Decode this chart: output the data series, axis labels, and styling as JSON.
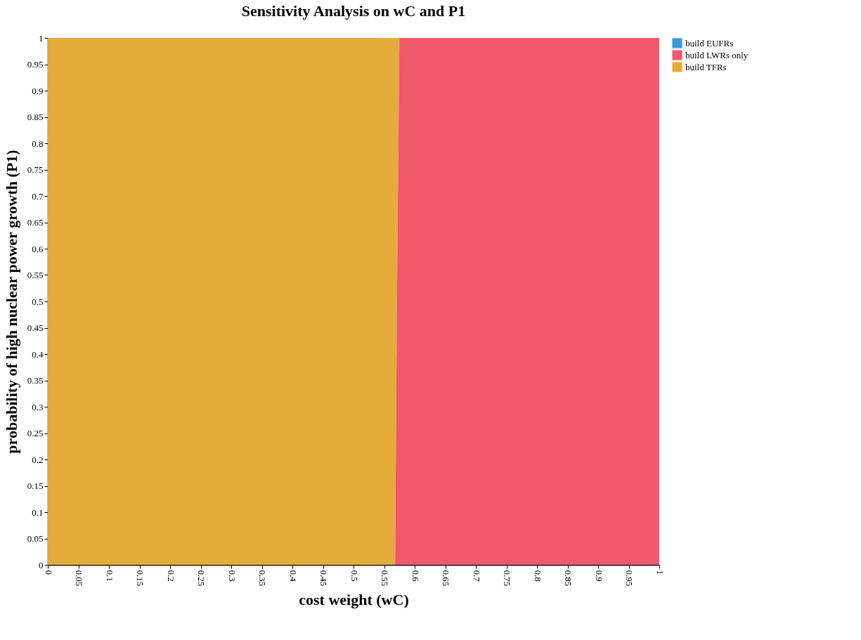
{
  "chart_data": {
    "type": "area",
    "title": "Sensitivity Analysis on wC and P1",
    "xlabel": "cost weight (wC)",
    "ylabel": "probability of high nuclear power growth (P1)",
    "orientation": "horizontal",
    "stacked": true,
    "x": [
      0,
      0.5,
      1
    ],
    "series": [
      {
        "name": "build TFRs",
        "color": "#e5ac3b",
        "values": [
          0.568,
          0.571,
          0.575
        ]
      },
      {
        "name": "build LWRs only",
        "color": "#f0586b",
        "values": [
          0.432,
          0.429,
          0.425
        ]
      },
      {
        "name": "build EUFRs",
        "color": "#3d9ad6",
        "values": [
          null,
          null,
          null
        ]
      }
    ],
    "xlim": [
      0,
      1
    ],
    "xticks": [
      0,
      0.05,
      0.1,
      0.15,
      0.2,
      0.25,
      0.3,
      0.35,
      0.4,
      0.45,
      0.5,
      0.55,
      0.6,
      0.65,
      0.7,
      0.75,
      0.8,
      0.85,
      0.9,
      0.95,
      1
    ],
    "ylim": [
      0,
      1
    ],
    "yticks": [
      0,
      0.05,
      0.1,
      0.15,
      0.2,
      0.25,
      0.3,
      0.35,
      0.4,
      0.45,
      0.5,
      0.55,
      0.6,
      0.65,
      0.7,
      0.75,
      0.8,
      0.85,
      0.9,
      0.95,
      1
    ],
    "grid": false,
    "legend": "right"
  }
}
